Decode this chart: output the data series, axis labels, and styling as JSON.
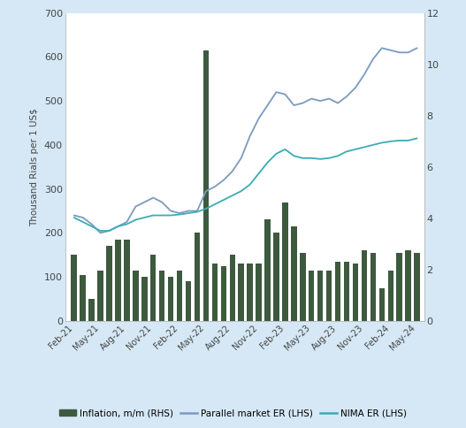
{
  "figure_bg_color": "#d6e8f5",
  "plot_bg_color": "#ffffff",
  "bar_color": "#3d5a3e",
  "parallel_color": "#7b9abf",
  "nima_color": "#3aacb5",
  "ylabel_left": "Thousand Rials per 1 US$",
  "ylim_left": [
    0,
    700
  ],
  "ylim_right": [
    0,
    12
  ],
  "yticks_left": [
    0,
    100,
    200,
    300,
    400,
    500,
    600,
    700
  ],
  "yticks_right": [
    0,
    2,
    4,
    6,
    8,
    10,
    12
  ],
  "xtick_labels": [
    "Feb-21",
    "May-21",
    "Aug-21",
    "Nov-21",
    "Feb-22",
    "May-22",
    "Aug-22",
    "Nov-22",
    "Feb-23",
    "May-23",
    "Aug-23",
    "Nov-23",
    "Feb-24",
    "May-24"
  ],
  "legend_inflation": "Inflation, m/m (RHS)",
  "legend_parallel": "Parallel market ER (LHS)",
  "legend_nima": "NIMA ER (LHS)",
  "inflation_bars": [
    150,
    105,
    50,
    115,
    170,
    185,
    185,
    115,
    100,
    150,
    115,
    100,
    115,
    90,
    200,
    615,
    130,
    125,
    150,
    130,
    130,
    130,
    230,
    200,
    270,
    215,
    155,
    115,
    115,
    115,
    135,
    135,
    130,
    160,
    155,
    75,
    115,
    155,
    160,
    155
  ],
  "parallel_er": [
    240,
    235,
    220,
    200,
    205,
    215,
    225,
    260,
    270,
    280,
    270,
    250,
    245,
    250,
    250,
    295,
    305,
    320,
    340,
    370,
    420,
    460,
    490,
    520,
    515,
    490,
    495,
    505,
    500,
    505,
    495,
    510,
    530,
    560,
    595,
    620,
    615,
    610,
    610,
    620
  ],
  "nima_er": [
    235,
    225,
    215,
    205,
    205,
    215,
    220,
    230,
    235,
    240,
    240,
    240,
    242,
    245,
    248,
    255,
    265,
    275,
    285,
    295,
    310,
    335,
    360,
    380,
    390,
    375,
    370,
    370,
    368,
    370,
    375,
    385,
    390,
    395,
    400,
    405,
    408,
    410,
    410,
    415
  ],
  "tick_positions": [
    0,
    3,
    6,
    9,
    12,
    15,
    18,
    21,
    24,
    27,
    30,
    33,
    36,
    39
  ]
}
